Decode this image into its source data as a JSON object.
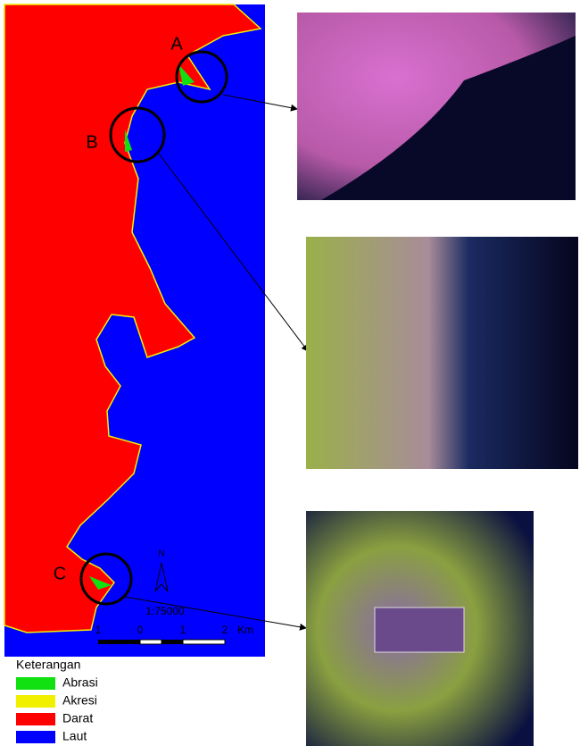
{
  "map": {
    "labels": [
      "A",
      "B",
      "C"
    ],
    "north": "N",
    "scale": "1:75000",
    "scale_ticks": [
      "1",
      "0",
      "1",
      "2"
    ],
    "scale_unit": "Km"
  },
  "legend": {
    "title": "Keterangan",
    "items": [
      {
        "label": "Abrasi",
        "color": "#11e011"
      },
      {
        "label": "Akresi",
        "color": "#f0f000"
      },
      {
        "label": "Darat",
        "color": "#ff0000"
      },
      {
        "label": "Laut",
        "color": "#0000ff"
      }
    ]
  }
}
